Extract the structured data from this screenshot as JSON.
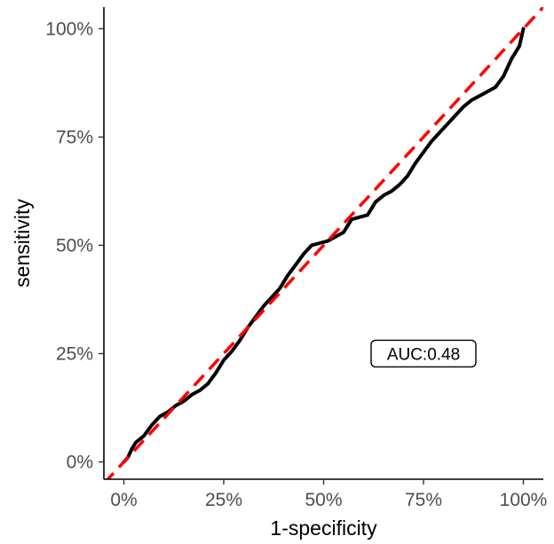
{
  "chart_data": {
    "type": "line",
    "title": "",
    "xlabel": "1-specificity",
    "ylabel": "sensitivity",
    "xlim": [
      -0.05,
      1.05
    ],
    "ylim": [
      -0.04,
      1.05
    ],
    "x_ticks": [
      0,
      0.25,
      0.5,
      0.75,
      1
    ],
    "x_tick_labels": [
      "0%",
      "25%",
      "50%",
      "75%",
      "100%"
    ],
    "y_ticks": [
      0,
      0.25,
      0.5,
      0.75,
      1
    ],
    "y_tick_labels": [
      "0%",
      "25%",
      "50%",
      "75%",
      "100%"
    ],
    "grid": false,
    "legend": "none",
    "annotation": {
      "text": "AUC:0.48",
      "x": 0.75,
      "y": 0.25
    },
    "series": [
      {
        "style": "solid",
        "color": "#000000",
        "points": [
          [
            0.0,
            0.0
          ],
          [
            0.01,
            0.01
          ],
          [
            0.02,
            0.03
          ],
          [
            0.03,
            0.045
          ],
          [
            0.05,
            0.06
          ],
          [
            0.07,
            0.085
          ],
          [
            0.09,
            0.105
          ],
          [
            0.11,
            0.115
          ],
          [
            0.13,
            0.13
          ],
          [
            0.15,
            0.14
          ],
          [
            0.17,
            0.155
          ],
          [
            0.19,
            0.165
          ],
          [
            0.21,
            0.18
          ],
          [
            0.23,
            0.205
          ],
          [
            0.25,
            0.235
          ],
          [
            0.27,
            0.255
          ],
          [
            0.29,
            0.28
          ],
          [
            0.31,
            0.31
          ],
          [
            0.33,
            0.335
          ],
          [
            0.35,
            0.36
          ],
          [
            0.37,
            0.38
          ],
          [
            0.39,
            0.4
          ],
          [
            0.41,
            0.43
          ],
          [
            0.43,
            0.455
          ],
          [
            0.45,
            0.48
          ],
          [
            0.47,
            0.5
          ],
          [
            0.49,
            0.505
          ],
          [
            0.51,
            0.51
          ],
          [
            0.53,
            0.52
          ],
          [
            0.55,
            0.53
          ],
          [
            0.57,
            0.56
          ],
          [
            0.59,
            0.565
          ],
          [
            0.61,
            0.57
          ],
          [
            0.63,
            0.6
          ],
          [
            0.65,
            0.615
          ],
          [
            0.67,
            0.625
          ],
          [
            0.69,
            0.64
          ],
          [
            0.71,
            0.66
          ],
          [
            0.73,
            0.69
          ],
          [
            0.75,
            0.715
          ],
          [
            0.77,
            0.74
          ],
          [
            0.79,
            0.76
          ],
          [
            0.81,
            0.78
          ],
          [
            0.83,
            0.8
          ],
          [
            0.85,
            0.82
          ],
          [
            0.87,
            0.835
          ],
          [
            0.89,
            0.845
          ],
          [
            0.91,
            0.855
          ],
          [
            0.93,
            0.865
          ],
          [
            0.95,
            0.89
          ],
          [
            0.97,
            0.93
          ],
          [
            0.99,
            0.96
          ],
          [
            1.0,
            1.0
          ]
        ]
      },
      {
        "style": "dashed",
        "color": "#ff0000",
        "points": [
          [
            -0.05,
            -0.05
          ],
          [
            1.05,
            1.05
          ]
        ]
      }
    ]
  }
}
